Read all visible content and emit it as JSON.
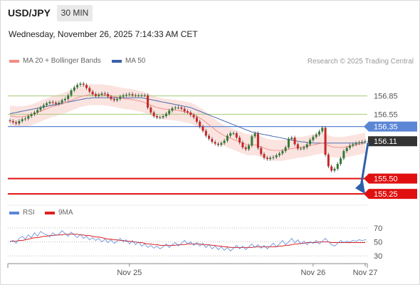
{
  "header": {
    "symbol": "USD/JPY",
    "timeframe": "30 MIN",
    "datetime": "Wednesday, November 26, 2025 7:14:33 AM CET"
  },
  "legend": {
    "items": [
      {
        "label": "MA 20 + Bollinger Bands",
        "color": "#f28b82"
      },
      {
        "label": "MA 50",
        "color": "#3b5fa8"
      }
    ],
    "copyright": "Research © 2025 Trading Central"
  },
  "rsi_legend": {
    "items": [
      {
        "label": "RSI",
        "color": "#5b86d6"
      },
      {
        "label": "9MA",
        "color": "#e02020"
      }
    ]
  },
  "chart_data": [
    {
      "type": "candlestick",
      "title": "USD/JPY 30 MIN",
      "ylim": [
        155.1,
        157.3
      ],
      "x_ticks": [
        {
          "label": "Nov 25",
          "index": 39
        },
        {
          "label": "Nov 26",
          "index": 99
        },
        {
          "label": "Nov 27",
          "index": 116
        }
      ],
      "levels": [
        {
          "value": 156.85,
          "label": "156.85",
          "kind": "resistance",
          "color": "#a6cc78"
        },
        {
          "value": 156.55,
          "label": "156.55",
          "kind": "resistance",
          "color": "#a6cc78"
        },
        {
          "value": 156.35,
          "label": "156.35",
          "kind": "pivot",
          "color": "#5b86d6"
        },
        {
          "value": 156.11,
          "label": "156.11",
          "kind": "last",
          "color": "#333333"
        },
        {
          "value": 155.5,
          "label": "155.50",
          "kind": "target",
          "color": "#e01010"
        },
        {
          "value": 155.25,
          "label": "155.25",
          "kind": "target",
          "color": "#e01010"
        }
      ],
      "close": [
        156.44,
        156.42,
        156.4,
        156.44,
        156.47,
        156.48,
        156.52,
        156.55,
        156.58,
        156.62,
        156.66,
        156.7,
        156.73,
        156.75,
        156.74,
        156.72,
        156.74,
        156.78,
        156.8,
        156.86,
        156.94,
        156.99,
        157.03,
        157.05,
        157.03,
        156.98,
        156.92,
        156.88,
        156.85,
        156.87,
        156.89,
        156.88,
        156.84,
        156.8,
        156.78,
        156.8,
        156.84,
        156.86,
        156.87,
        156.88,
        156.86,
        156.86,
        156.86,
        156.86,
        156.86,
        156.66,
        156.58,
        156.52,
        156.5,
        156.5,
        156.52,
        156.56,
        156.61,
        156.65,
        156.66,
        156.66,
        156.64,
        156.6,
        156.58,
        156.54,
        156.5,
        156.43,
        156.35,
        156.28,
        156.2,
        156.15,
        156.1,
        156.07,
        156.05,
        156.08,
        156.12,
        156.2,
        156.24,
        156.24,
        156.17,
        156.09,
        156.01,
        155.98,
        156.04,
        156.19,
        156.24,
        156.0,
        155.9,
        155.84,
        155.82,
        155.84,
        155.85,
        155.88,
        155.91,
        155.95,
        156.01,
        156.15,
        156.17,
        156.06,
        155.99,
        155.99,
        156.01,
        156.06,
        156.13,
        156.18,
        156.22,
        156.27,
        156.33,
        155.89,
        155.7,
        155.63,
        155.66,
        155.74,
        155.83,
        155.95,
        156.0,
        156.04,
        156.06,
        156.08,
        156.09,
        156.1,
        156.11
      ],
      "open": [
        156.45,
        156.44,
        156.42,
        156.4,
        156.44,
        156.47,
        156.48,
        156.52,
        156.55,
        156.58,
        156.62,
        156.66,
        156.7,
        156.73,
        156.75,
        156.74,
        156.72,
        156.74,
        156.78,
        156.8,
        156.86,
        156.94,
        156.99,
        157.03,
        157.05,
        157.03,
        156.98,
        156.92,
        156.88,
        156.85,
        156.87,
        156.89,
        156.88,
        156.84,
        156.8,
        156.78,
        156.8,
        156.84,
        156.86,
        156.87,
        156.88,
        156.86,
        156.86,
        156.86,
        156.86,
        156.86,
        156.66,
        156.58,
        156.52,
        156.5,
        156.5,
        156.52,
        156.56,
        156.61,
        156.65,
        156.66,
        156.66,
        156.64,
        156.6,
        156.58,
        156.54,
        156.5,
        156.43,
        156.35,
        156.28,
        156.2,
        156.15,
        156.1,
        156.07,
        156.05,
        156.08,
        156.12,
        156.2,
        156.24,
        156.24,
        156.17,
        156.09,
        156.01,
        155.98,
        156.04,
        156.19,
        156.24,
        156.0,
        155.9,
        155.84,
        155.82,
        155.84,
        155.85,
        155.88,
        155.91,
        155.95,
        156.01,
        156.15,
        156.17,
        156.06,
        155.99,
        155.99,
        156.01,
        156.06,
        156.13,
        156.18,
        156.22,
        156.27,
        156.33,
        155.89,
        155.7,
        155.63,
        155.66,
        155.74,
        155.83,
        155.95,
        156.0,
        156.04,
        156.06,
        156.08,
        156.09,
        156.1
      ],
      "ma20": [
        156.52,
        156.52,
        156.51,
        156.51,
        156.51,
        156.52,
        156.53,
        156.54,
        156.56,
        156.58,
        156.6,
        156.62,
        156.64,
        156.66,
        156.68,
        156.69,
        156.71,
        156.72,
        156.74,
        156.76,
        156.78,
        156.8,
        156.82,
        156.84,
        156.85,
        156.86,
        156.87,
        156.87,
        156.87,
        156.87,
        156.87,
        156.86,
        156.86,
        156.85,
        156.84,
        156.83,
        156.82,
        156.81,
        156.8,
        156.8,
        156.79,
        156.78,
        156.77,
        156.76,
        156.74,
        156.72,
        156.7,
        156.68,
        156.66,
        156.65,
        156.64,
        156.63,
        156.63,
        156.62,
        156.62,
        156.61,
        156.6,
        156.59,
        156.58,
        156.57,
        156.55,
        156.52,
        156.49,
        156.46,
        156.42,
        156.38,
        156.34,
        156.3,
        156.26,
        156.23,
        156.2,
        156.18,
        156.16,
        156.14,
        156.12,
        156.1,
        156.08,
        156.06,
        156.05,
        156.05,
        156.05,
        156.04,
        156.02,
        156.0,
        155.98,
        155.97,
        155.96,
        155.96,
        155.96,
        155.96,
        155.97,
        155.98,
        155.99,
        156.0,
        156.01,
        156.01,
        156.02,
        156.03,
        156.04,
        156.05,
        156.06,
        156.07,
        156.08,
        156.06,
        156.04,
        156.02,
        156.01,
        156.01,
        156.01,
        156.01,
        156.02,
        156.03,
        156.04,
        156.05,
        156.06,
        156.07,
        156.08
      ],
      "ma50": [
        156.56,
        156.57,
        156.58,
        156.59,
        156.6,
        156.61,
        156.62,
        156.63,
        156.64,
        156.65,
        156.66,
        156.67,
        156.68,
        156.69,
        156.7,
        156.71,
        156.72,
        156.73,
        156.74,
        156.75,
        156.76,
        156.77,
        156.78,
        156.79,
        156.8,
        156.81,
        156.81,
        156.82,
        156.82,
        156.82,
        156.82,
        156.82,
        156.82,
        156.82,
        156.82,
        156.82,
        156.82,
        156.82,
        156.82,
        156.82,
        156.82,
        156.82,
        156.82,
        156.82,
        156.81,
        156.8,
        156.79,
        156.78,
        156.77,
        156.76,
        156.75,
        156.74,
        156.73,
        156.72,
        156.71,
        156.7,
        156.69,
        156.68,
        156.67,
        156.66,
        156.64,
        156.62,
        156.6,
        156.58,
        156.56,
        156.54,
        156.52,
        156.5,
        156.48,
        156.46,
        156.44,
        156.42,
        156.4,
        156.38,
        156.36,
        156.34,
        156.32,
        156.3,
        156.28,
        156.26,
        156.25,
        156.24,
        156.23,
        156.22,
        156.21,
        156.2,
        156.19,
        156.18,
        156.17,
        156.16,
        156.15,
        156.14,
        156.13,
        156.12,
        156.11,
        156.1,
        156.1,
        156.09,
        156.09,
        156.08,
        156.08,
        156.08,
        156.08,
        156.08,
        156.08,
        156.08,
        156.08,
        156.08,
        156.08,
        156.08,
        156.08,
        156.08,
        156.08,
        156.08,
        156.08,
        156.09,
        156.09
      ],
      "bb_width": 0.17,
      "forecast": {
        "from": 156.11,
        "to": 155.25,
        "direction": "down"
      }
    },
    {
      "type": "line",
      "title": "RSI",
      "ylim": [
        20,
        80
      ],
      "y_ticks": [
        70,
        50,
        30
      ],
      "series": [
        {
          "name": "RSI",
          "values": [
            50,
            52,
            48,
            55,
            58,
            54,
            60,
            56,
            63,
            58,
            65,
            62,
            60,
            57,
            63,
            59,
            61,
            66,
            62,
            58,
            64,
            60,
            56,
            61,
            55,
            58,
            53,
            56,
            52,
            55,
            50,
            54,
            49,
            53,
            48,
            51,
            55,
            50,
            53,
            47,
            52,
            46,
            50,
            44,
            47,
            42,
            45,
            41,
            44,
            40,
            43,
            47,
            42,
            46,
            49,
            44,
            48,
            52,
            47,
            50,
            45,
            49,
            44,
            48,
            42,
            46,
            40,
            44,
            39,
            43,
            38,
            42,
            37,
            41,
            45,
            40,
            44,
            39,
            43,
            47,
            42,
            46,
            41,
            45,
            40,
            44,
            48,
            43,
            47,
            52,
            46,
            50,
            55,
            49,
            53,
            47,
            51,
            46,
            50,
            48,
            52,
            47,
            51,
            55,
            50,
            46,
            44,
            48,
            52,
            49,
            51,
            50,
            52,
            51,
            53,
            52,
            53
          ]
        },
        {
          "name": "9MA",
          "values": [
            51,
            51,
            51,
            52,
            52,
            53,
            54,
            55,
            56,
            56,
            57,
            58,
            58,
            59,
            59,
            60,
            60,
            60,
            61,
            61,
            61,
            61,
            61,
            60,
            60,
            59,
            59,
            58,
            57,
            57,
            56,
            55,
            54,
            54,
            53,
            53,
            52,
            52,
            51,
            51,
            50,
            50,
            49,
            49,
            48,
            47,
            47,
            46,
            46,
            45,
            45,
            45,
            45,
            45,
            45,
            46,
            46,
            46,
            47,
            47,
            47,
            47,
            47,
            46,
            46,
            46,
            45,
            45,
            44,
            44,
            43,
            43,
            42,
            42,
            42,
            42,
            42,
            42,
            42,
            42,
            43,
            43,
            43,
            43,
            43,
            43,
            43,
            43,
            44,
            44,
            45,
            45,
            46,
            47,
            47,
            48,
            48,
            49,
            49,
            49,
            49,
            50,
            50,
            50,
            50,
            49,
            49,
            49,
            49,
            49,
            49,
            49,
            49,
            49,
            49,
            49,
            49
          ]
        }
      ]
    }
  ]
}
